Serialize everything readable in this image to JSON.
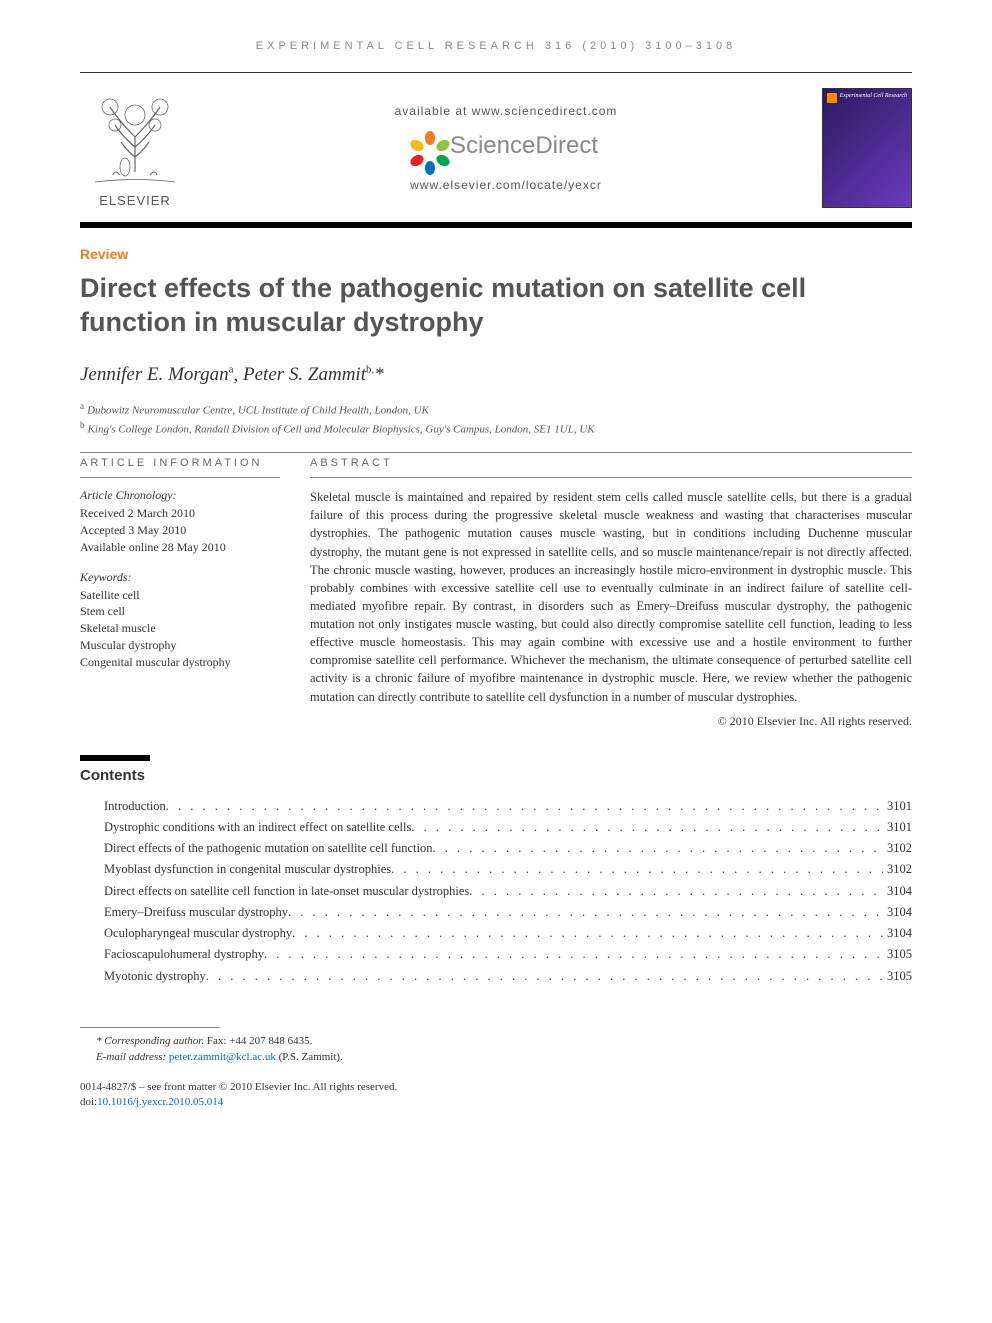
{
  "running_header": "EXPERIMENTAL CELL RESEARCH 316 (2010) 3100–3108",
  "masthead": {
    "elsevier": "ELSEVIER",
    "available_at": "available at www.sciencedirect.com",
    "sciencedirect": "ScienceDirect",
    "locate": "www.elsevier.com/locate/yexcr",
    "cover_title": "Experimental\nCell Research",
    "sd_flower_colors": [
      "#f47b20",
      "#8dc63f",
      "#00a651",
      "#0072bc",
      "#ed1c24",
      "#fdb913"
    ]
  },
  "article": {
    "type_label": "Review",
    "title": "Direct effects of the pathogenic mutation on satellite cell function in muscular dystrophy",
    "authors_html": "Jennifer E. Morgan<sup>a</sup>, Peter S. Zammit<sup>b,</sup>*",
    "authors": [
      {
        "name": "Jennifer E. Morgan",
        "aff": "a"
      },
      {
        "name": "Peter S. Zammit",
        "aff": "b",
        "corresponding": true
      }
    ],
    "affiliations": [
      {
        "key": "a",
        "text": "Dubowitz Neuromuscular Centre, UCL Institute of Child Health, London, UK"
      },
      {
        "key": "b",
        "text": "King's College London, Randall Division of Cell and Molecular Biophysics, Guy's Campus, London, SE1 1UL, UK"
      }
    ]
  },
  "info": {
    "heading": "ARTICLE INFORMATION",
    "chronology_label": "Article Chronology:",
    "received": "Received 2 March 2010",
    "accepted": "Accepted 3 May 2010",
    "online": "Available online 28 May 2010",
    "keywords_label": "Keywords:",
    "keywords": [
      "Satellite cell",
      "Stem cell",
      "Skeletal muscle",
      "Muscular dystrophy",
      "Congenital muscular dystrophy"
    ]
  },
  "abstract": {
    "heading": "ABSTRACT",
    "text": "Skeletal muscle is maintained and repaired by resident stem cells called muscle satellite cells, but there is a gradual failure of this process during the progressive skeletal muscle weakness and wasting that characterises muscular dystrophies. The pathogenic mutation causes muscle wasting, but in conditions including Duchenne muscular dystrophy, the mutant gene is not expressed in satellite cells, and so muscle maintenance/repair is not directly affected. The chronic muscle wasting, however, produces an increasingly hostile micro-environment in dystrophic muscle. This probably combines with excessive satellite cell use to eventually culminate in an indirect failure of satellite cell-mediated myofibre repair. By contrast, in disorders such as Emery–Dreifuss muscular dystrophy, the pathogenic mutation not only instigates muscle wasting, but could also directly compromise satellite cell function, leading to less effective muscle homeostasis. This may again combine with excessive use and a hostile environment to further compromise satellite cell performance. Whichever the mechanism, the ultimate consequence of perturbed satellite cell activity is a chronic failure of myofibre maintenance in dystrophic muscle. Here, we review whether the pathogenic mutation can directly contribute to satellite cell dysfunction in a number of muscular dystrophies.",
    "copyright": "© 2010 Elsevier Inc. All rights reserved."
  },
  "contents": {
    "heading": "Contents",
    "items": [
      {
        "title": "Introduction",
        "page": "3101"
      },
      {
        "title": "Dystrophic conditions with an indirect effect on satellite cells",
        "page": "3101"
      },
      {
        "title": "Direct effects of the pathogenic mutation on satellite cell function",
        "page": "3102"
      },
      {
        "title": "Myoblast dysfunction in congenital muscular dystrophies",
        "page": "3102"
      },
      {
        "title": "Direct effects on satellite cell function in late-onset muscular dystrophies",
        "page": "3104"
      },
      {
        "title": "Emery–Dreifuss muscular dystrophy",
        "page": "3104"
      },
      {
        "title": "Oculopharyngeal muscular dystrophy",
        "page": "3104"
      },
      {
        "title": "Facioscapulohumeral dystrophy",
        "page": "3105"
      },
      {
        "title": "Myotonic dystrophy",
        "page": "3105"
      }
    ]
  },
  "footnotes": {
    "corresponding_label": "* Corresponding author.",
    "fax": "Fax: +44 207 848 6435.",
    "email_label": "E-mail address:",
    "email": "peter.zammit@kcl.ac.uk",
    "email_person": "(P.S. Zammit)."
  },
  "footer": {
    "issn_line": "0014-4827/$ – see front matter © 2010 Elsevier Inc. All rights reserved.",
    "doi_label": "doi:",
    "doi": "10.1016/j.yexcr.2010.05.014"
  },
  "colors": {
    "accent_orange": "#f47b20",
    "link_blue": "#0066cc",
    "rule_black": "#000000",
    "text_gray": "#555555"
  }
}
